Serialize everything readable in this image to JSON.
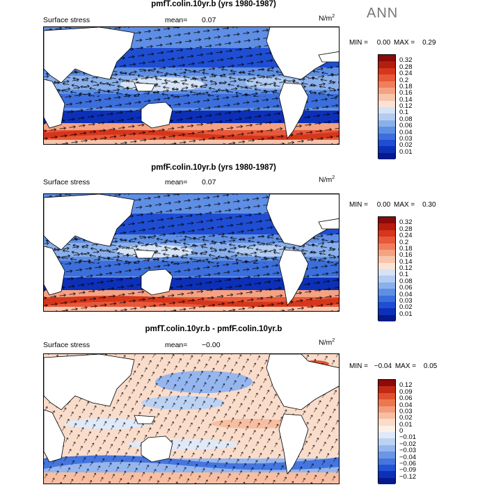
{
  "season": "ANN",
  "units_base": "N/m",
  "units_exp": "2",
  "panels": [
    {
      "title": "pmfT.colin.10yr.b (yrs 1980-1987)",
      "variable": "Surface stress",
      "mean_label": "mean=",
      "mean_value": "0.07",
      "min_label": "MIN =",
      "min_value": "0.00",
      "max_label": "MAX =",
      "max_value": "0.29",
      "levels": [
        "0.32",
        "0.28",
        "0.24",
        "0.2",
        "0.18",
        "0.16",
        "0.14",
        "0.12",
        "0.1",
        "0.08",
        "0.06",
        "0.04",
        "0.03",
        "0.02",
        "0.01"
      ],
      "colors": [
        "#8b0a0a",
        "#b51d0f",
        "#d6361b",
        "#e8583a",
        "#f07e5c",
        "#f5a283",
        "#f8c4ab",
        "#fbe3d3",
        "#d5e3f7",
        "#b3cdf2",
        "#8ab0ec",
        "#5f8fe4",
        "#3c6fdc",
        "#1f4ed3",
        "#0d30b8",
        "#061a8c"
      ]
    },
    {
      "title": "pmfF.colin.10yr.b (yrs 1980-1987)",
      "variable": "Surface stress",
      "mean_label": "mean=",
      "mean_value": "0.07",
      "min_label": "MIN =",
      "min_value": "0.00",
      "max_label": "MAX =",
      "max_value": "0.30",
      "levels": [
        "0.32",
        "0.28",
        "0.24",
        "0.2",
        "0.18",
        "0.16",
        "0.14",
        "0.12",
        "0.1",
        "0.08",
        "0.06",
        "0.04",
        "0.03",
        "0.02",
        "0.01"
      ],
      "colors": [
        "#8b0a0a",
        "#b51d0f",
        "#d6361b",
        "#e8583a",
        "#f07e5c",
        "#f5a283",
        "#f8c4ab",
        "#fbe3d3",
        "#d5e3f7",
        "#b3cdf2",
        "#8ab0ec",
        "#5f8fe4",
        "#3c6fdc",
        "#1f4ed3",
        "#0d30b8",
        "#061a8c"
      ]
    },
    {
      "title": "pmfT.colin.10yr.b - pmfF.colin.10yr.b",
      "variable": "Surface stress",
      "mean_label": "mean=",
      "mean_value": "−0.00",
      "min_label": "MIN =",
      "min_value": "−0.04",
      "max_label": "MAX =",
      "max_value": "0.05",
      "levels": [
        "0.12",
        "0.09",
        "0.06",
        "0.04",
        "0.03",
        "0.02",
        "0.01",
        "0",
        "−0.01",
        "−0.02",
        "−0.03",
        "−0.04",
        "−0.06",
        "−0.09",
        "−0.12"
      ],
      "colors": [
        "#8b0a0a",
        "#c22a14",
        "#e0502f",
        "#ee7650",
        "#f39c7b",
        "#f7bea2",
        "#fadccb",
        "#fdf0e6",
        "#dfe9f8",
        "#bcd2f3",
        "#95b6ee",
        "#6a96e6",
        "#4575df",
        "#2352d4",
        "#0d30b8",
        "#061a8c"
      ]
    }
  ]
}
